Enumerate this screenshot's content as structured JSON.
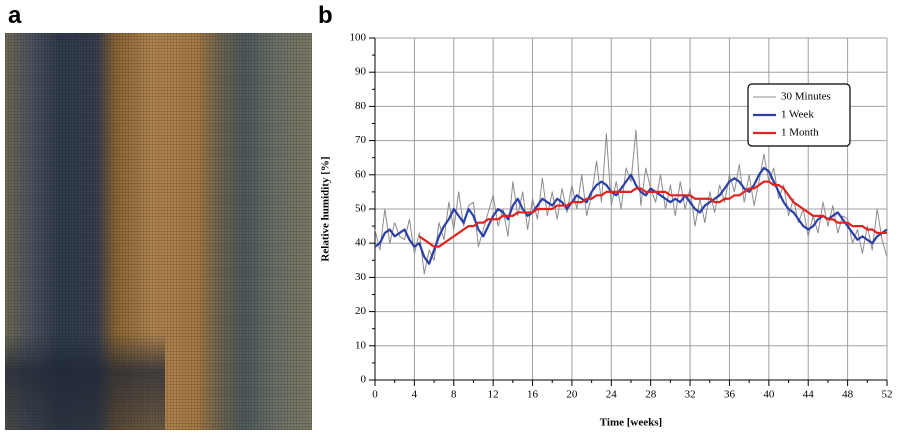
{
  "panel_labels": [
    "a",
    "b"
  ],
  "chart_data": {
    "type": "line",
    "ylabel": "Relative humidity [%]",
    "xlabel": "Time [weeks]",
    "xlim": [
      0,
      52
    ],
    "xticks": [
      0,
      4,
      8,
      12,
      16,
      20,
      24,
      28,
      32,
      36,
      40,
      44,
      48,
      52
    ],
    "ylim": [
      0,
      100
    ],
    "yticks": [
      0,
      10,
      20,
      30,
      40,
      50,
      60,
      70,
      80,
      90,
      100
    ],
    "grid": true,
    "legend": "upper right",
    "x": [
      0,
      0.5,
      1,
      1.5,
      2,
      2.5,
      3,
      3.5,
      4,
      4.5,
      5,
      5.5,
      6,
      6.5,
      7,
      7.5,
      8,
      8.5,
      9,
      9.5,
      10,
      10.5,
      11,
      11.5,
      12,
      12.5,
      13,
      13.5,
      14,
      14.5,
      15,
      15.5,
      16,
      16.5,
      17,
      17.5,
      18,
      18.5,
      19,
      19.5,
      20,
      20.5,
      21,
      21.5,
      22,
      22.5,
      23,
      23.5,
      24,
      24.5,
      25,
      25.5,
      26,
      26.5,
      27,
      27.5,
      28,
      28.5,
      29,
      29.5,
      30,
      30.5,
      31,
      31.5,
      32,
      32.5,
      33,
      33.5,
      34,
      34.5,
      35,
      35.5,
      36,
      36.5,
      37,
      37.5,
      38,
      38.5,
      39,
      39.5,
      40,
      40.5,
      41,
      41.5,
      42,
      42.5,
      43,
      43.5,
      44,
      44.5,
      45,
      45.5,
      46,
      46.5,
      47,
      47.5,
      48,
      48.5,
      49,
      49.5,
      50,
      50.5,
      51,
      51.5,
      52
    ],
    "series": [
      {
        "name": "30 Minutes",
        "color": "#8c8c8c",
        "width": 1,
        "values": [
          44,
          38,
          50,
          40,
          46,
          42,
          41,
          47,
          37,
          43,
          31,
          38,
          35,
          46,
          41,
          52,
          44,
          55,
          45,
          51,
          52,
          39,
          44,
          49,
          54,
          45,
          50,
          42,
          58,
          48,
          55,
          44,
          53,
          47,
          59,
          48,
          55,
          47,
          56,
          49,
          57,
          50,
          60,
          48,
          54,
          64,
          52,
          72,
          51,
          58,
          50,
          62,
          58,
          73,
          51,
          62,
          56,
          52,
          60,
          50,
          57,
          48,
          58,
          50,
          56,
          45,
          53,
          46,
          55,
          49,
          57,
          52,
          60,
          55,
          63,
          52,
          60,
          51,
          58,
          66,
          58,
          62,
          53,
          57,
          48,
          53,
          46,
          50,
          42,
          48,
          43,
          52,
          45,
          51,
          43,
          48,
          47,
          40,
          44,
          37,
          45,
          38,
          50,
          41,
          36
        ]
      },
      {
        "name": "1 Week",
        "color": "#2b3fa6",
        "width": 2.2,
        "values": [
          39,
          40,
          43,
          44,
          42,
          43,
          44,
          41,
          39,
          40,
          36,
          34,
          38,
          42,
          45,
          47,
          50,
          48,
          46,
          50,
          48,
          44,
          42,
          45,
          48,
          50,
          49,
          47,
          51,
          53,
          50,
          48,
          49,
          51,
          53,
          52,
          51,
          53,
          52,
          50,
          52,
          54,
          53,
          52,
          55,
          57,
          58,
          57,
          55,
          54,
          56,
          58,
          60,
          57,
          55,
          54,
          56,
          55,
          54,
          53,
          52,
          53,
          52,
          54,
          52,
          50,
          49,
          51,
          52,
          53,
          54,
          56,
          58,
          59,
          58,
          56,
          55,
          57,
          60,
          62,
          61,
          58,
          55,
          52,
          50,
          49,
          47,
          45,
          44,
          45,
          47,
          48,
          47,
          48,
          49,
          47,
          45,
          43,
          41,
          42,
          41,
          40,
          42,
          43,
          44
        ]
      },
      {
        "name": "1 Month",
        "color": "#e0231f",
        "width": 2.2,
        "values": [
          null,
          null,
          null,
          null,
          null,
          null,
          null,
          null,
          null,
          42,
          41,
          40,
          39,
          39,
          40,
          41,
          42,
          43,
          44,
          45,
          45,
          46,
          46,
          47,
          47,
          47,
          48,
          48,
          48,
          49,
          49,
          49,
          49,
          50,
          50,
          50,
          50,
          51,
          51,
          51,
          52,
          52,
          52,
          53,
          53,
          54,
          54,
          55,
          55,
          55,
          55,
          55,
          55,
          56,
          56,
          55,
          55,
          55,
          55,
          55,
          54,
          54,
          54,
          54,
          54,
          53,
          53,
          53,
          53,
          52,
          52,
          53,
          53,
          54,
          54,
          55,
          56,
          56,
          57,
          58,
          58,
          57,
          57,
          56,
          54,
          52,
          51,
          50,
          49,
          48,
          48,
          48,
          47,
          47,
          46,
          46,
          46,
          45,
          45,
          45,
          44,
          44,
          43,
          43,
          43
        ]
      }
    ]
  }
}
